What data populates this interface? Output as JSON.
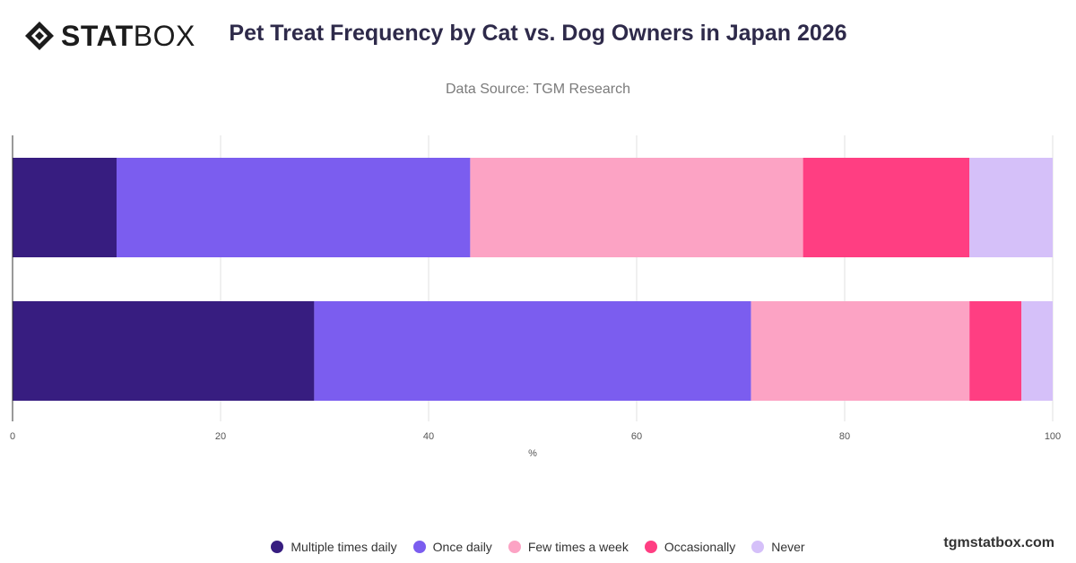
{
  "logo": {
    "text_bold": "STAT",
    "text_light": "BOX"
  },
  "title": "Pet Treat Frequency by Cat vs. Dog Owners in Japan 2026",
  "subtitle": "Data Source: TGM Research",
  "brand": "tgmstatbox.com",
  "colors": {
    "gridline": "#e0e0e0",
    "axis": "#333333"
  },
  "chart_data": {
    "type": "bar",
    "orientation": "horizontal",
    "stacked": true,
    "categories": [
      "",
      ""
    ],
    "xlabel": "%",
    "xlim": [
      0,
      100
    ],
    "xticks": [
      0,
      20,
      40,
      60,
      80,
      100
    ],
    "grid": true,
    "legend_position": "bottom",
    "series": [
      {
        "name": "Multiple times daily",
        "color": "#371d80",
        "values": [
          10,
          29
        ]
      },
      {
        "name": "Once daily",
        "color": "#7b5def",
        "values": [
          34,
          42
        ]
      },
      {
        "name": "Few times a week",
        "color": "#fca3c4",
        "values": [
          32,
          21
        ]
      },
      {
        "name": "Occasionally",
        "color": "#ff3e82",
        "values": [
          16,
          5
        ]
      },
      {
        "name": "Never",
        "color": "#d5c0f9",
        "values": [
          8,
          3
        ]
      }
    ]
  }
}
